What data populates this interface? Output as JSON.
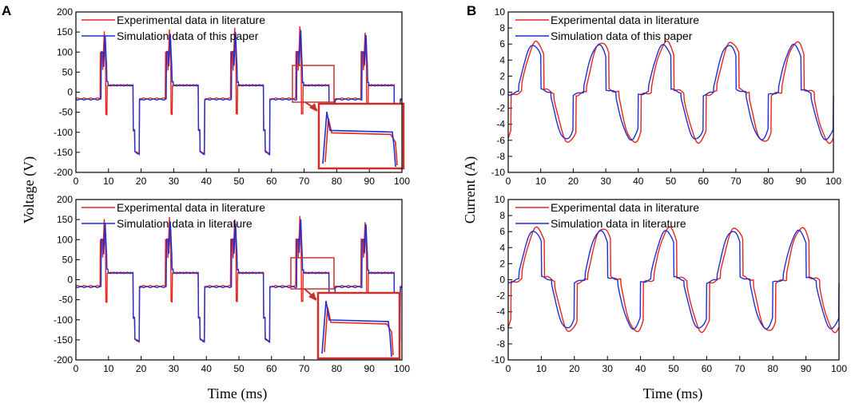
{
  "figure": {
    "panel_a": "A",
    "panel_b": "B",
    "panel_a_xlabel": "Time (ms)",
    "panel_b_xlabel": "Time (ms)",
    "panel_a_ylabel": "Voltage (V)",
    "panel_b_ylabel": "Current (A)"
  },
  "colors": {
    "experimental": "#e8241f",
    "simulation": "#1f2fd0",
    "inset": "#c9302c"
  },
  "chart_data": [
    {
      "id": "A-top",
      "type": "line",
      "kind": "voltage",
      "xlim": [
        0,
        100
      ],
      "ylim": [
        -200,
        200
      ],
      "xticks": [
        0,
        10,
        20,
        30,
        40,
        50,
        60,
        70,
        80,
        90,
        100
      ],
      "yticks": [
        -200,
        -150,
        -100,
        -50,
        0,
        50,
        100,
        150,
        200
      ],
      "legend_position": "top-left",
      "series": [
        {
          "name": "Experimental data in literature",
          "color": "#e8241f"
        },
        {
          "name": "Simulation data of this paper",
          "color": "#1f2fd0"
        }
      ],
      "peaks": [
        150,
        155,
        160,
        165,
        150
      ],
      "troughs": [
        -155,
        -155,
        -155,
        -155,
        -150
      ],
      "inset": {
        "zoom_x": [
          67,
          78
        ],
        "zoom_y": [
          -10,
          80
        ]
      }
    },
    {
      "id": "A-bottom",
      "type": "line",
      "kind": "voltage",
      "xlim": [
        0,
        100
      ],
      "ylim": [
        -200,
        200
      ],
      "xticks": [
        0,
        10,
        20,
        30,
        40,
        50,
        60,
        70,
        80,
        90,
        100
      ],
      "yticks": [
        -200,
        -150,
        -100,
        -50,
        0,
        50,
        100,
        150,
        200
      ],
      "legend_position": "top-left",
      "series": [
        {
          "name": "Experimental data in literature",
          "color": "#e8241f"
        },
        {
          "name": "Simulation data in literature",
          "color": "#1f2fd0"
        }
      ],
      "peaks": [
        150,
        155,
        150,
        160,
        145
      ],
      "troughs": [
        -155,
        -155,
        -155,
        -155,
        -150
      ],
      "inset": {
        "zoom_x": [
          66,
          79
        ],
        "zoom_y": [
          -10,
          60
        ]
      }
    },
    {
      "id": "B-top",
      "type": "line",
      "kind": "current",
      "xlim": [
        0,
        100
      ],
      "ylim": [
        -10,
        10
      ],
      "xticks": [
        0,
        10,
        20,
        30,
        40,
        50,
        60,
        70,
        80,
        90,
        100
      ],
      "yticks": [
        -10,
        -8,
        -6,
        -4,
        -2,
        0,
        2,
        4,
        6,
        8,
        10
      ],
      "legend_position": "top-left",
      "amplitude": 6,
      "period_ms": 20,
      "series": [
        {
          "name": "Experimental data in literature",
          "color": "#e8241f"
        },
        {
          "name": "Simulation data of this paper",
          "color": "#1f2fd0"
        }
      ]
    },
    {
      "id": "B-bottom",
      "type": "line",
      "kind": "current",
      "xlim": [
        0,
        100
      ],
      "ylim": [
        -10,
        10
      ],
      "xticks": [
        0,
        10,
        20,
        30,
        40,
        50,
        60,
        70,
        80,
        90,
        100
      ],
      "yticks": [
        -10,
        -8,
        -6,
        -4,
        -2,
        0,
        2,
        4,
        6,
        8,
        10
      ],
      "legend_position": "top-left",
      "amplitude": 6.2,
      "period_ms": 20,
      "series": [
        {
          "name": "Experimental data in literature",
          "color": "#e8241f"
        },
        {
          "name": "Simulation data in literature",
          "color": "#1f2fd0"
        }
      ]
    }
  ]
}
